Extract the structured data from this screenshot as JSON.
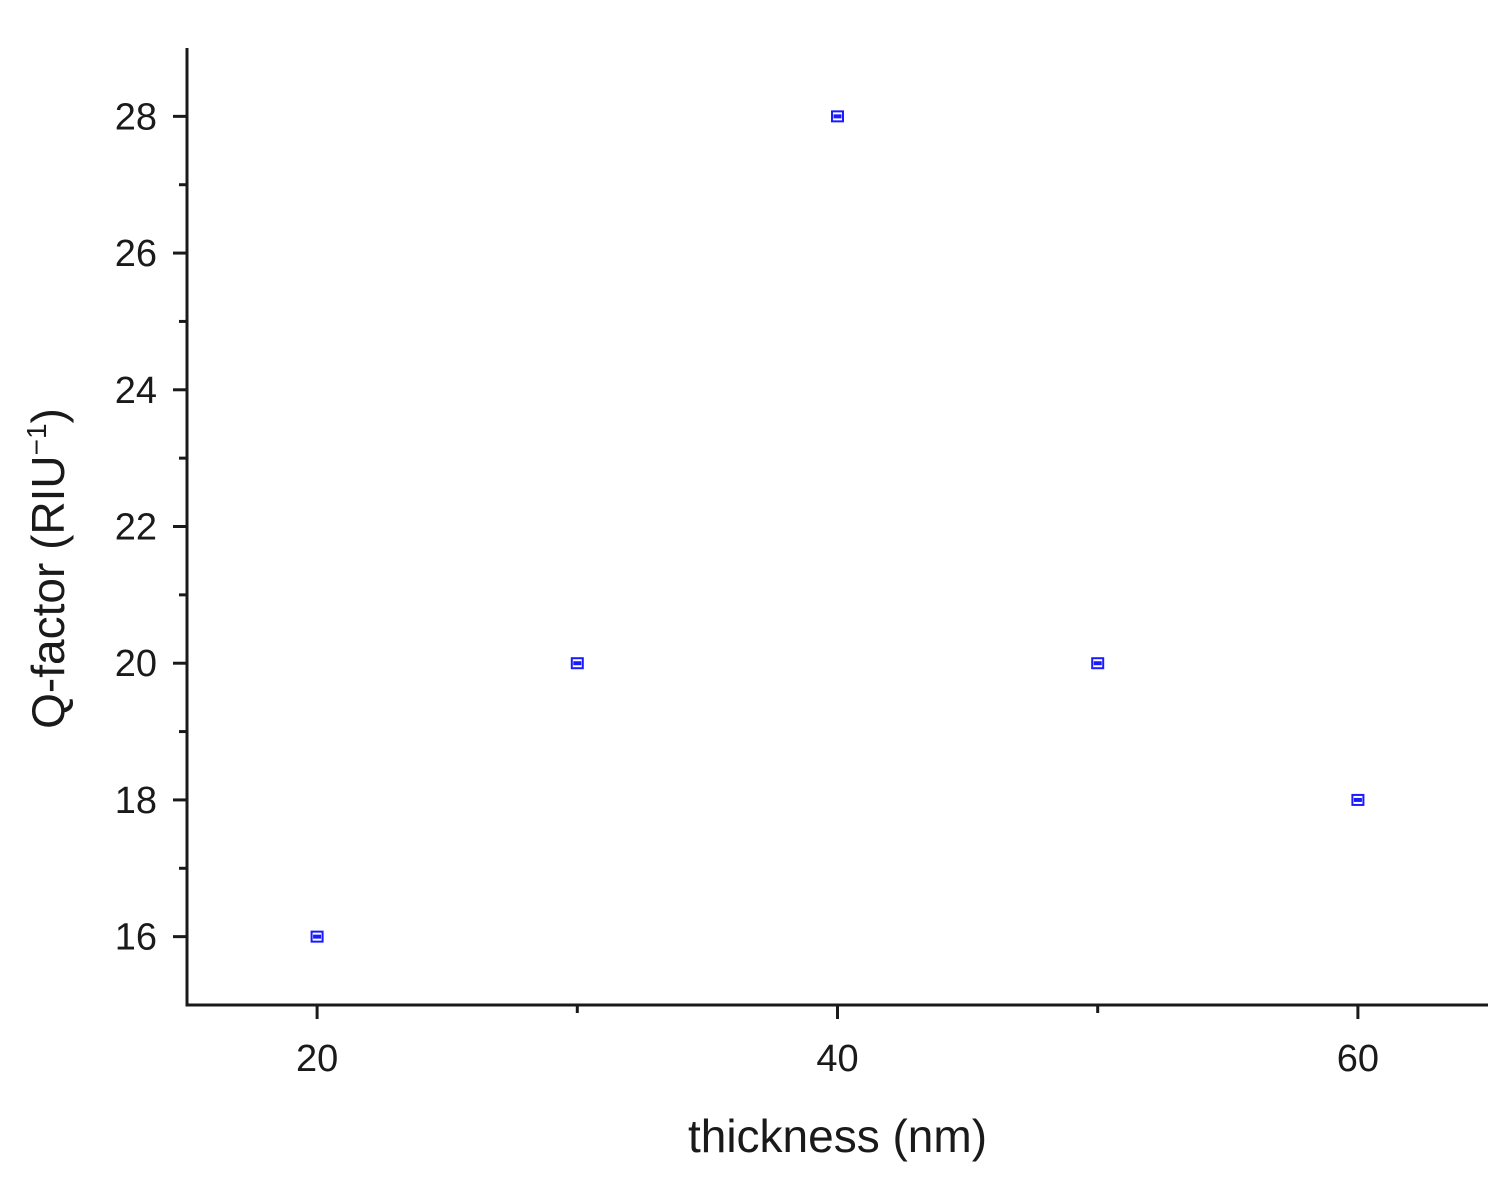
{
  "chart_data": {
    "type": "scatter",
    "title": "",
    "xlabel": "thickness (nm)",
    "ylabel": "Q-factor (RIU",
    "ylabel_superscript": "−1",
    "ylabel_close": ")",
    "xlim": [
      15,
      65
    ],
    "ylim": [
      15,
      29
    ],
    "x_major_ticks": [
      20,
      40,
      60
    ],
    "x_minor_ticks": [
      30,
      50
    ],
    "y_major_ticks": [
      16,
      18,
      20,
      22,
      24,
      26,
      28
    ],
    "y_minor_ticks": [
      17,
      19,
      21,
      23,
      25,
      27
    ],
    "grid": false,
    "marker_color": "#1a1aff",
    "series": [
      {
        "x": [
          20,
          30,
          40,
          50,
          60
        ],
        "y": [
          16,
          20,
          28,
          20,
          18
        ]
      }
    ]
  }
}
